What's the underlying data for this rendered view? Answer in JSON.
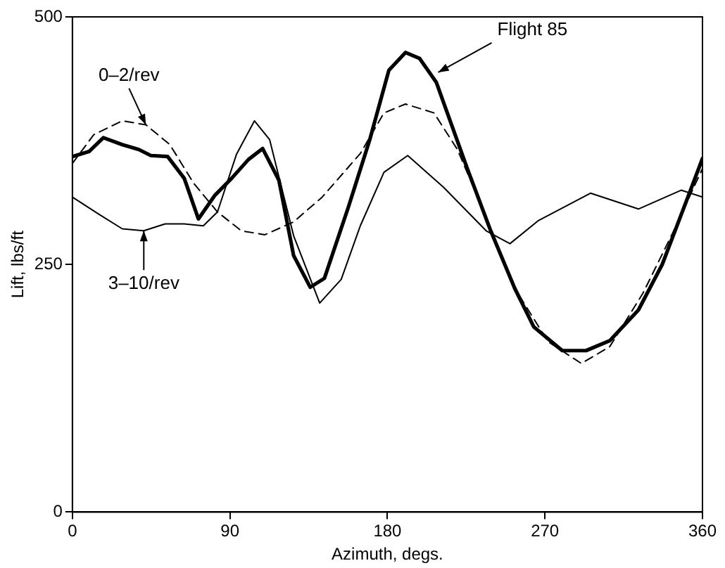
{
  "chart_data": {
    "type": "line",
    "xlabel": "Azimuth, degs.",
    "ylabel": "Lift, lbs/ft",
    "xlim": [
      0,
      360
    ],
    "xticks": [
      0,
      90,
      180,
      270,
      360
    ],
    "ylim": [
      0,
      500
    ],
    "yticks": [
      0,
      250,
      500
    ],
    "grid": false,
    "legend": false,
    "marker": "none",
    "series": [
      {
        "color": "#000000",
        "line_style": "solid",
        "x": [
          0,
          9.5,
          17.7,
          28.5,
          38,
          44.8,
          54.4,
          63.9,
          72,
          81.5,
          91,
          100.6,
          108.7,
          118,
          126.4,
          135.9,
          144,
          157.7,
          169.9,
          180.8,
          190.3,
          198.4,
          207.9,
          225.6,
          239,
          252.7,
          263.6,
          279.9,
          293.5,
          307,
          323.4,
          337,
          350.6,
          360
        ],
        "values": [
          359,
          364,
          378,
          371,
          366,
          360,
          359,
          337,
          296,
          320,
          337,
          356,
          367,
          335,
          259,
          227,
          236,
          308,
          376,
          446,
          464,
          458,
          434,
          347,
          284,
          226,
          187,
          163,
          163,
          173,
          204,
          250,
          313,
          357
        ]
      },
      {
        "color": "#000000",
        "line_style": "dashed",
        "x": [
          0,
          12.2,
          28.5,
          42,
          55.7,
          69.3,
          82.9,
          96.5,
          110,
          126.4,
          142.7,
          164.5,
          178,
          190.3,
          206.6,
          220,
          236.4,
          252.7,
          271.8,
          290.8,
          307,
          326,
          345,
          360
        ],
        "values": [
          352,
          381,
          395,
          391,
          371,
          332,
          303,
          284,
          280,
          293,
          318,
          362,
          403,
          412,
          403,
          366,
          298,
          226,
          172,
          150,
          167,
          221,
          289,
          347
        ]
      },
      {
        "color": "#000000",
        "line_style": "solid",
        "x": [
          0,
          14.9,
          28.5,
          40.8,
          53,
          63.9,
          74.8,
          82.9,
          93.7,
          104,
          112.7,
          126.4,
          141.3,
          153.6,
          164.5,
          178,
          191.6,
          212,
          236.4,
          250,
          266,
          296,
          323.4,
          347.8,
          360
        ],
        "values": [
          318,
          301,
          286,
          284,
          291,
          291,
          289,
          303,
          361,
          395,
          376,
          279,
          211,
          235,
          289,
          343,
          360,
          328,
          284,
          271,
          294,
          322,
          306,
          325,
          318
        ]
      }
    ],
    "annotations": [
      {
        "text": "Flight 85",
        "x": 209,
        "y": 444
      },
      {
        "text": "0–2/rev",
        "x": 42,
        "y": 391
      },
      {
        "text": "3–10/rev",
        "x": 40.8,
        "y": 284
      }
    ]
  }
}
